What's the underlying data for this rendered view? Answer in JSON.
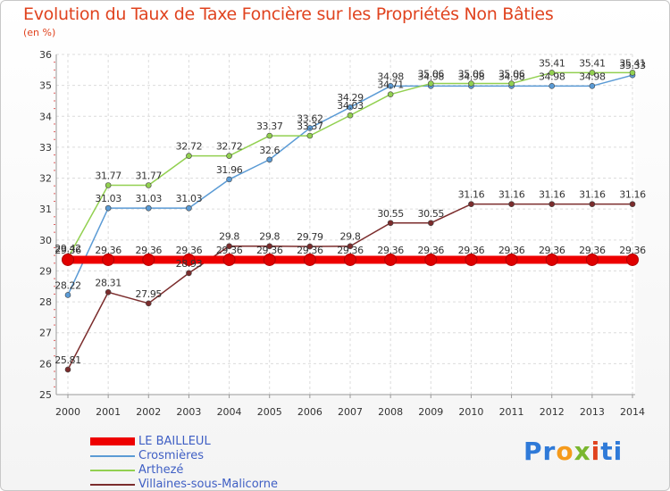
{
  "title": "Evolution du Taux de Taxe Foncière sur les Propriétés Non Bâties",
  "unit_label": "(en %)",
  "brand": {
    "parts": [
      "Pr",
      "o",
      "x",
      "i",
      "ti"
    ],
    "colors": [
      "#2f7ad8",
      "#f59a1b",
      "#7ab72f",
      "#e0431f",
      "#2f7ad8"
    ]
  },
  "chart_data": {
    "type": "line",
    "title": "Evolution du Taux de Taxe Foncière sur les Propriétés Non Bâties",
    "ylabel": "(en %)",
    "x": [
      "2000",
      "2001",
      "2002",
      "2003",
      "2004",
      "2005",
      "2006",
      "2007",
      "2008",
      "2009",
      "2010",
      "2011",
      "2012",
      "2013",
      "2014"
    ],
    "ylim": [
      25,
      36
    ],
    "yticks": [
      "25",
      "26",
      "27",
      "28",
      "29",
      "30",
      "31",
      "32",
      "33",
      "34",
      "35",
      "36"
    ],
    "grid": true,
    "series": [
      {
        "name": "LE BAILLEUL",
        "color": "#ee0000",
        "values": [
          29.36,
          29.36,
          29.36,
          29.36,
          29.36,
          29.36,
          29.36,
          29.36,
          29.36,
          29.36,
          29.36,
          29.36,
          29.36,
          29.36,
          29.36
        ],
        "labels": [
          "29.36",
          "29.36",
          "29.36",
          "29.36",
          "29.36",
          "29.36",
          "29.36",
          "29.36",
          "29.36",
          "29.36",
          "29.36",
          "29.36",
          "29.36",
          "29.36",
          "29.36"
        ]
      },
      {
        "name": "Crosmières",
        "color": "#5b9bd5",
        "values": [
          28.22,
          31.03,
          31.03,
          31.03,
          31.96,
          32.6,
          33.62,
          34.29,
          34.98,
          34.98,
          34.98,
          34.98,
          34.98,
          34.98,
          35.33
        ],
        "labels": [
          "28.22",
          "31.03",
          "31.03",
          "31.03",
          "31.96",
          "32.6",
          "33.62",
          "34.29",
          "34.98",
          "34.98",
          "34.98",
          "34.98",
          "34.98",
          "34.98",
          "35.33"
        ]
      },
      {
        "name": "Arthezé",
        "color": "#92d050",
        "values": [
          29.42,
          31.77,
          31.77,
          32.72,
          32.72,
          33.37,
          33.37,
          34.03,
          34.71,
          35.06,
          35.06,
          35.06,
          35.41,
          35.41,
          35.41
        ],
        "labels": [
          "29.42",
          "31.77",
          "31.77",
          "32.72",
          "32.72",
          "33.37",
          "33.37",
          "34.03",
          "34.71",
          "35.06",
          "35.06",
          "35.06",
          "35.41",
          "35.41",
          "35.41"
        ]
      },
      {
        "name": "Villaines-sous-Malicorne",
        "color": "#7b2c2c",
        "values": [
          25.81,
          28.31,
          27.95,
          28.93,
          29.8,
          29.8,
          29.79,
          29.8,
          30.55,
          30.55,
          31.16,
          31.16,
          31.16,
          31.16,
          31.16
        ],
        "labels": [
          "25.81",
          "28.31",
          "27.95",
          "28.93",
          "29.8",
          "29.8",
          "29.79",
          "29.8",
          "30.55",
          "30.55",
          "31.16",
          "31.16",
          "31.16",
          "31.16",
          "31.16"
        ]
      }
    ],
    "legend_position": "bottom-left"
  }
}
